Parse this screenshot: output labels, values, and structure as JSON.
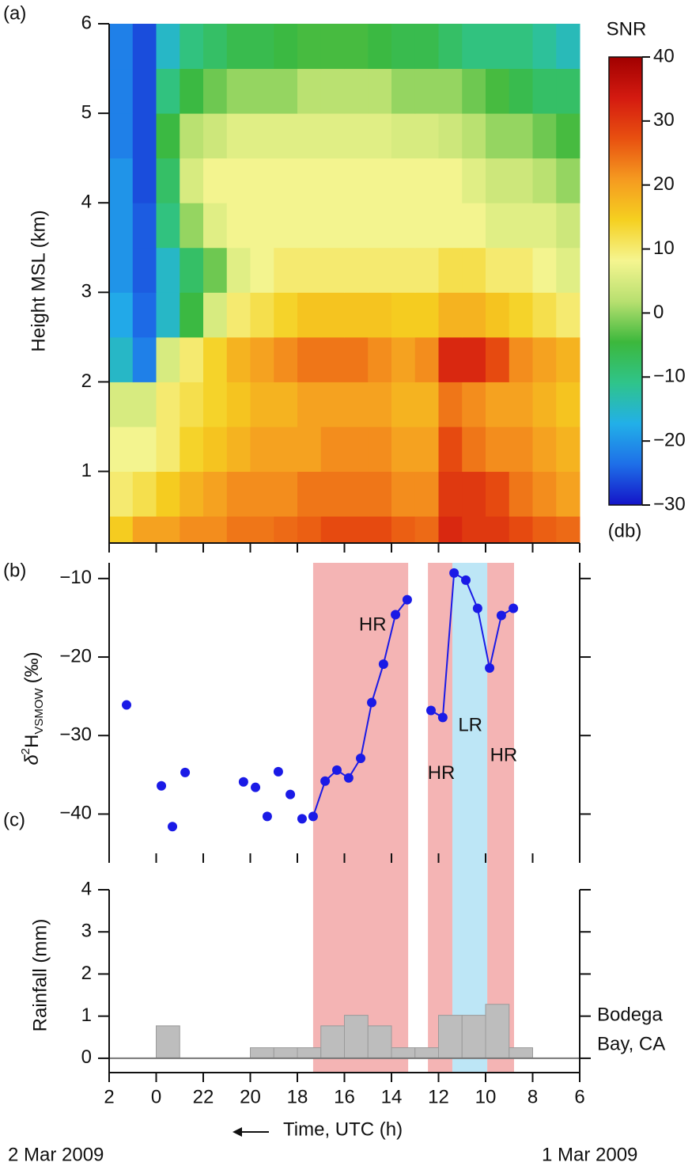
{
  "chart_data": [
    {
      "type": "heatmap",
      "panel_label": "(a)",
      "ylabel": "Height MSL (km)",
      "ylim": [
        0.2,
        6
      ],
      "yticks": [
        1,
        2,
        3,
        4,
        5,
        6
      ],
      "x_edges": [
        26,
        25,
        24,
        23,
        22,
        21,
        20,
        19,
        18,
        17,
        16,
        15,
        14,
        13,
        12,
        11,
        10,
        9,
        8,
        7,
        6
      ],
      "y_edges": [
        0.2,
        0.5,
        1,
        1.5,
        2,
        2.5,
        3,
        3.5,
        4,
        4.5,
        5,
        5.5,
        6
      ],
      "z": [
        [
          15,
          20,
          20,
          22,
          22,
          24,
          24,
          25,
          26,
          28,
          28,
          28,
          26,
          25,
          32,
          30,
          30,
          28,
          26,
          25
        ],
        [
          10,
          12,
          15,
          18,
          20,
          22,
          22,
          22,
          24,
          24,
          24,
          24,
          22,
          22,
          30,
          30,
          28,
          24,
          22,
          20
        ],
        [
          8,
          8,
          10,
          14,
          16,
          18,
          20,
          20,
          20,
          22,
          22,
          22,
          20,
          20,
          28,
          24,
          22,
          22,
          20,
          18
        ],
        [
          5,
          5,
          10,
          12,
          14,
          16,
          18,
          18,
          20,
          20,
          20,
          20,
          18,
          18,
          24,
          22,
          20,
          20,
          18,
          16
        ],
        [
          -15,
          -22,
          5,
          10,
          14,
          18,
          20,
          22,
          24,
          24,
          24,
          22,
          20,
          22,
          32,
          32,
          28,
          22,
          20,
          18
        ],
        [
          -18,
          -24,
          -15,
          -5,
          5,
          10,
          12,
          14,
          16,
          16,
          16,
          16,
          15,
          15,
          18,
          18,
          16,
          14,
          12,
          10
        ],
        [
          -20,
          -25,
          -15,
          -8,
          -2,
          6,
          8,
          10,
          10,
          10,
          10,
          10,
          10,
          10,
          12,
          12,
          10,
          10,
          8,
          6
        ],
        [
          -20,
          -25,
          -10,
          0,
          6,
          8,
          8,
          8,
          8,
          8,
          8,
          8,
          8,
          8,
          8,
          8,
          6,
          6,
          6,
          4
        ],
        [
          -20,
          -26,
          -8,
          5,
          8,
          8,
          8,
          8,
          8,
          8,
          8,
          8,
          8,
          8,
          8,
          6,
          4,
          4,
          2,
          0
        ],
        [
          -22,
          -26,
          -5,
          2,
          4,
          6,
          6,
          6,
          6,
          6,
          6,
          6,
          5,
          5,
          4,
          2,
          0,
          0,
          -2,
          -4
        ],
        [
          -22,
          -26,
          -10,
          -5,
          -2,
          0,
          0,
          0,
          2,
          2,
          2,
          2,
          0,
          0,
          0,
          -2,
          -4,
          -6,
          -8,
          -8
        ],
        [
          -22,
          -26,
          -15,
          -10,
          -8,
          -6,
          -6,
          -5,
          -4,
          -4,
          -4,
          -5,
          -6,
          -6,
          -8,
          -10,
          -10,
          -10,
          -12,
          -14
        ]
      ],
      "colormap": [
        "#1414c8",
        "#1e6fe8",
        "#22b0e8",
        "#2fc48a",
        "#3cb83c",
        "#b8e070",
        "#f5f590",
        "#f5d020",
        "#f59a20",
        "#e85010",
        "#d41a10",
        "#a00000"
      ],
      "clim": [
        -30,
        40
      ],
      "cticks": [
        {
          "value": -30,
          "label": "−30"
        },
        {
          "value": -20,
          "label": "−20"
        },
        {
          "value": -10,
          "label": "−10"
        },
        0,
        10,
        20,
        30,
        40
      ],
      "clabel": "SNR",
      "cunit": "(db)"
    },
    {
      "type": "scatter",
      "panel_label": "(b)",
      "ylabel": {
        "delta": "δ",
        "sup": "2",
        "base": "H",
        "sub": "VSMOW",
        "unit": "(‰)"
      },
      "ylim": [
        -45,
        -8
      ],
      "yticks": [
        {
          "value": -10,
          "label": "−10"
        },
        {
          "value": -20,
          "label": "−20"
        },
        {
          "value": -30,
          "label": "−30"
        },
        {
          "value": -40,
          "label": "−40"
        }
      ],
      "regions": [
        {
          "start": 17.33,
          "end": 13.29,
          "color": "#f4b4b4"
        },
        {
          "start": 12.45,
          "end": 11.41,
          "color": "#f4b4b4"
        },
        {
          "start": 11.41,
          "end": 9.93,
          "color": "#bde6f6"
        },
        {
          "start": 9.93,
          "end": 8.79,
          "color": "#f4b4b4"
        }
      ],
      "annotations": [
        {
          "text": "HR",
          "x": 14.8,
          "y": -16
        },
        {
          "text": "LR",
          "x": 10.65,
          "y": -28.8
        },
        {
          "text": "HR",
          "x": 11.88,
          "y": -34.9
        },
        {
          "text": "HR",
          "x": 9.23,
          "y": -32.6
        }
      ],
      "series": [
        {
          "color": "#1a1ae6",
          "line": false,
          "x": [
            25.26,
            23.78,
            23.31,
            22.77,
            20.29,
            19.78,
            19.28,
            18.81,
            18.3,
            17.8
          ],
          "values": [
            -26.1,
            -36.4,
            -41.6,
            -34.7,
            -35.9,
            -36.6,
            -40.3,
            -34.6,
            -37.5,
            -40.6
          ]
        },
        {
          "color": "#1a1ae6",
          "line": true,
          "x": [
            17.33,
            16.82,
            16.32,
            15.82,
            15.31,
            14.84,
            14.34,
            13.83,
            13.33
          ],
          "values": [
            -40.3,
            -35.8,
            -34.4,
            -35.4,
            -32.9,
            -25.8,
            -20.9,
            -14.6,
            -12.7
          ]
        },
        {
          "color": "#1a1ae6",
          "line": true,
          "x": [
            12.32,
            11.82,
            11.34,
            10.84,
            10.34,
            9.83,
            9.33,
            8.82
          ],
          "values": [
            -26.8,
            -27.7,
            -9.3,
            -10.2,
            -13.8,
            -21.4,
            -14.7,
            -13.8
          ]
        }
      ]
    },
    {
      "type": "histogram",
      "panel_label": "(c)",
      "ylabel": "Rainfall (mm)",
      "bins": [
        24,
        23,
        22,
        21,
        20,
        19,
        18,
        17,
        16,
        15,
        14,
        13,
        12,
        11,
        10,
        9,
        8
      ],
      "values": [
        0.77,
        0,
        0,
        0,
        0.25,
        0.25,
        0.25,
        0.77,
        1.02,
        0.77,
        0.25,
        0.25,
        1.02,
        1.02,
        1.28,
        0.25
      ],
      "color": "#bdbdbd",
      "ylim": [
        -0.34,
        4
      ],
      "yticks": [
        0,
        1,
        2,
        3,
        4
      ],
      "station": [
        "Bodega",
        "Bay, CA"
      ],
      "xlim": [
        26,
        6
      ],
      "xticks": [
        {
          "value": 26,
          "label": "2"
        },
        {
          "value": 24,
          "label": "0"
        },
        22,
        20,
        18,
        16,
        14,
        12,
        10,
        8,
        6
      ],
      "xlabel": "Time, UTC (h)",
      "dates": [
        "2 Mar 2009",
        "1 Mar 2009"
      ]
    }
  ]
}
